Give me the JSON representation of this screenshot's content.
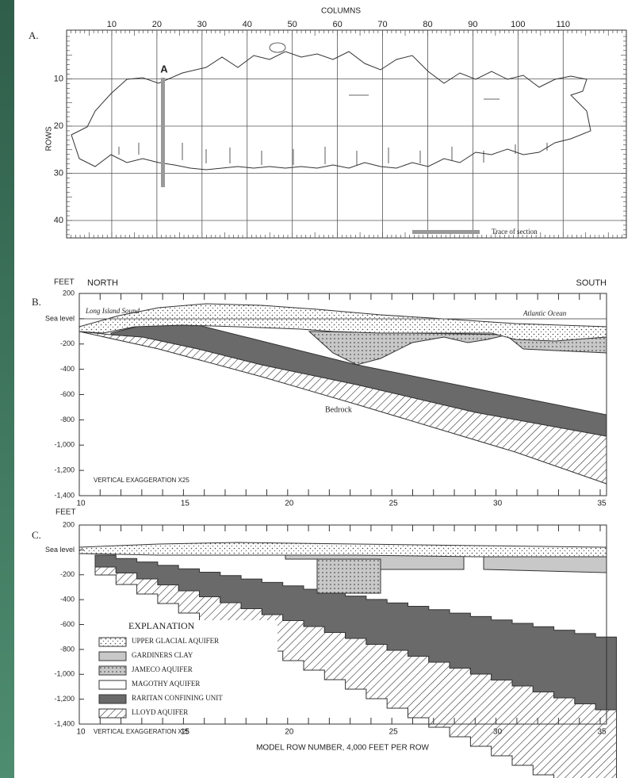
{
  "panel_a": {
    "label": "A.",
    "axis_title_top": "COLUMNS",
    "axis_title_left": "ROWS",
    "column_ticks": [
      "10",
      "20",
      "30",
      "40",
      "50",
      "60",
      "70",
      "80",
      "90",
      "100",
      "110"
    ],
    "row_ticks": [
      "10",
      "20",
      "30",
      "40"
    ],
    "section_marker": "A",
    "legend": "Trace of section"
  },
  "panel_b": {
    "label": "B.",
    "unit": "FEET",
    "left_direction": "NORTH",
    "right_direction": "SOUTH",
    "y_ticks": [
      "200",
      "Sea level",
      "-200",
      "-400",
      "-600",
      "-800",
      "-1,000",
      "-1,200",
      "-1,400"
    ],
    "x_ticks": [
      "10",
      "15",
      "20",
      "25",
      "30",
      "35"
    ],
    "annotations": [
      "Long Island Sound",
      "Atlantic Ocean",
      "Bedrock"
    ],
    "note": "VERTICAL EXAGGERATION X25"
  },
  "panel_c": {
    "label": "C.",
    "unit": "FEET",
    "y_ticks": [
      "200",
      "Sea level",
      "-200",
      "-400",
      "-600",
      "-800",
      "-1,000",
      "-1,200",
      "-1,400"
    ],
    "x_ticks": [
      "10",
      "15",
      "20",
      "25",
      "30",
      "35"
    ],
    "legend_title": "EXPLANATION",
    "legend": [
      "UPPER GLACIAL AQUIFER",
      "GARDINERS CLAY",
      "JAMECO AQUIFER",
      "MAGOTHY AQUIFER",
      "RARITAN CONFINING UNIT",
      "LLOYD AQUIFER"
    ],
    "note": "VERTICAL EXAGGERATION X25",
    "x_axis_title": "MODEL ROW NUMBER, 4,000 FEET PER ROW"
  }
}
